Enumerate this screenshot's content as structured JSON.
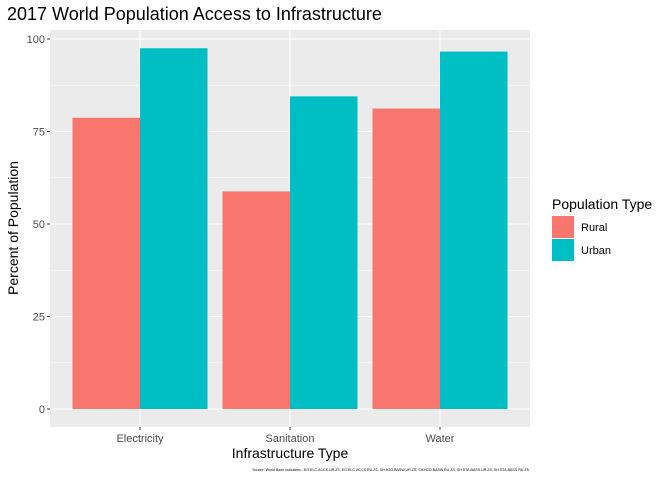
{
  "chart_data": {
    "type": "bar",
    "title": "2017 World Population Access to Infrastructure",
    "xlabel": "Infrastructure Type",
    "ylabel": "Percent of Population",
    "categories": [
      "Electricity",
      "Sanitation",
      "Water"
    ],
    "series": [
      {
        "name": "Rural",
        "color": "#F8766D",
        "values": [
          78.7,
          58.8,
          81.2
        ]
      },
      {
        "name": "Urban",
        "color": "#00BFC4",
        "values": [
          97.5,
          84.5,
          96.6
        ]
      }
    ],
    "ylim": [
      0,
      100
    ],
    "yticks": [
      0,
      25,
      50,
      75,
      100
    ],
    "legend": {
      "title": "Population Type",
      "position": "right"
    },
    "caption": "Source: World Bank Indicators - EG.ELC.ACCS.UR.ZS, EG.ELC.ACCS.RU.ZS, SH.H2O.BASW.UR.ZS, SH.H2O.BASW.RU.ZS, SH.STA.BASS.UR.ZS, SH.STA.BASS.RU.ZS",
    "grid": true,
    "panel_background": "#EBEBEB"
  }
}
